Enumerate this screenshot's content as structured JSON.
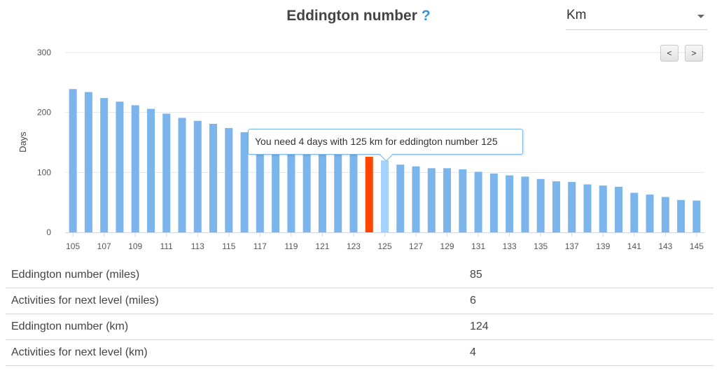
{
  "title": "Eddington number",
  "help_icon": "?",
  "unit_select": {
    "value": "Km"
  },
  "nav": {
    "prev_label": "<",
    "next_label": ">"
  },
  "tooltip": {
    "text": "You need 4 days with 125 km for eddington number 125"
  },
  "colors": {
    "bar": "#7cb5ec",
    "current": "#ff4500",
    "hover": "#a5d2fd"
  },
  "chart_data": {
    "type": "bar",
    "title": "",
    "xlabel": "",
    "ylabel": "Days",
    "ylim": [
      0,
      300
    ],
    "yticks": [
      0,
      100,
      200,
      300
    ],
    "x": [
      105,
      106,
      107,
      108,
      109,
      110,
      111,
      112,
      113,
      114,
      115,
      116,
      117,
      118,
      119,
      120,
      121,
      122,
      123,
      124,
      125,
      126,
      127,
      128,
      129,
      130,
      131,
      132,
      133,
      134,
      135,
      136,
      137,
      138,
      139,
      140,
      141,
      142,
      143,
      144,
      145
    ],
    "x_tick_labels": [
      "105",
      "107",
      "109",
      "111",
      "113",
      "115",
      "117",
      "119",
      "121",
      "123",
      "125",
      "127",
      "129",
      "131",
      "133",
      "135",
      "137",
      "139",
      "141",
      "143",
      "145"
    ],
    "values": [
      239,
      234,
      224,
      218,
      212,
      206,
      198,
      191,
      186,
      181,
      174,
      167,
      159,
      149,
      143,
      140,
      139,
      135,
      130,
      126,
      120,
      113,
      110,
      107,
      107,
      105,
      101,
      98,
      95,
      93,
      89,
      85,
      84,
      80,
      78,
      76,
      66,
      63,
      59,
      54,
      53
    ],
    "highlight_current": 124,
    "highlight_hover": 125,
    "grid": true,
    "legend": "none"
  },
  "stats": [
    {
      "label": "Eddington number (miles)",
      "value": "85"
    },
    {
      "label": "Activities for next level (miles)",
      "value": "6"
    },
    {
      "label": "Eddington number (km)",
      "value": "124"
    },
    {
      "label": "Activities for next level (km)",
      "value": "4"
    }
  ]
}
